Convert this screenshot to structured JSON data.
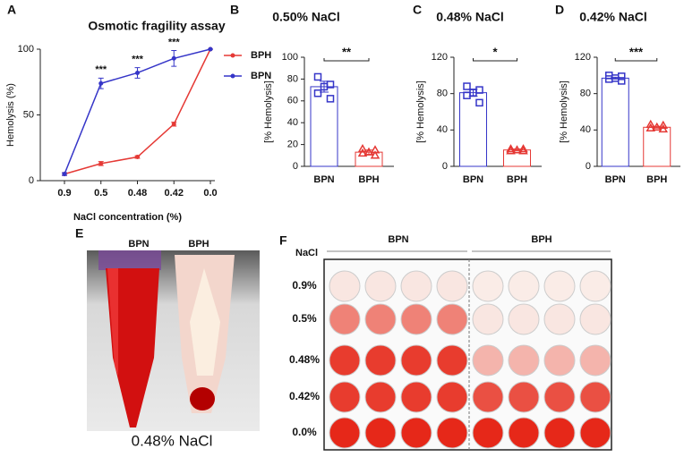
{
  "chart_data": [
    {
      "type": "line",
      "label": "A",
      "title": "Osmotic fragility assay",
      "x_label": "NaCl concentration (%)",
      "y_label": "Hemolysis (%)",
      "categories": [
        "0.9",
        "0.5",
        "0.48",
        "0.42",
        "0.0"
      ],
      "ylim": [
        0,
        100
      ],
      "yticks": [
        0,
        50,
        100
      ],
      "legend": "right",
      "series": [
        {
          "name": "BPH",
          "color": "#e53935",
          "values": [
            5,
            13,
            18,
            43,
            100
          ],
          "errors": [
            1,
            1.5,
            1,
            1.5,
            0
          ]
        },
        {
          "name": "BPN",
          "color": "#3535c8",
          "values": [
            5,
            74,
            82,
            93,
            100
          ],
          "errors": [
            1,
            4,
            4,
            6,
            0
          ]
        }
      ],
      "annotations": [
        null,
        "***",
        "***",
        "***",
        null
      ]
    },
    {
      "type": "bar",
      "label": "B",
      "title": "0.50% NaCl",
      "y_label": "[% Hemolysis]",
      "categories": [
        "BPN",
        "BPH"
      ],
      "colors": [
        "#3535c8",
        "#e53935"
      ],
      "values": [
        73,
        13
      ],
      "errors": [
        5,
        2
      ],
      "points": [
        [
          82,
          75,
          73,
          67,
          62
        ],
        [
          16,
          15,
          13,
          12,
          10
        ]
      ],
      "ylim": [
        0,
        100
      ],
      "yticks": [
        0,
        20,
        40,
        60,
        80,
        100
      ],
      "significance": "**"
    },
    {
      "type": "bar",
      "label": "C",
      "title": "0.48% NaCl",
      "y_label": "[% Hemolysis]",
      "categories": [
        "BPN",
        "BPH"
      ],
      "colors": [
        "#3535c8",
        "#e53935"
      ],
      "values": [
        81,
        18
      ],
      "errors": [
        4,
        1
      ],
      "points": [
        [
          88,
          84,
          81,
          78,
          70
        ],
        [
          19,
          19,
          18,
          17,
          17
        ]
      ],
      "ylim": [
        0,
        120
      ],
      "yticks": [
        0,
        40,
        80,
        120
      ],
      "significance": "*"
    },
    {
      "type": "bar",
      "label": "D",
      "title": "0.42% NaCl",
      "y_label": "[% Hemolysis]",
      "categories": [
        "BPN",
        "BPH"
      ],
      "colors": [
        "#3535c8",
        "#e53935"
      ],
      "values": [
        97,
        43
      ],
      "errors": [
        1,
        1
      ],
      "points": [
        [
          100,
          99,
          97,
          96,
          94
        ],
        [
          46,
          45,
          43,
          42,
          41
        ]
      ],
      "ylim": [
        0,
        120
      ],
      "yticks": [
        0,
        40,
        80,
        120
      ],
      "significance": "***"
    }
  ],
  "photo": {
    "label": "E",
    "columns": [
      "BPN",
      "BPH"
    ],
    "caption": "0.48% NaCl"
  },
  "plate": {
    "label": "F",
    "row_title": "NaCl",
    "columns": [
      "BPN",
      "BPH"
    ],
    "rows": [
      "0.9%",
      "0.5%",
      "0.48%",
      "0.42%",
      "0.0%"
    ]
  }
}
